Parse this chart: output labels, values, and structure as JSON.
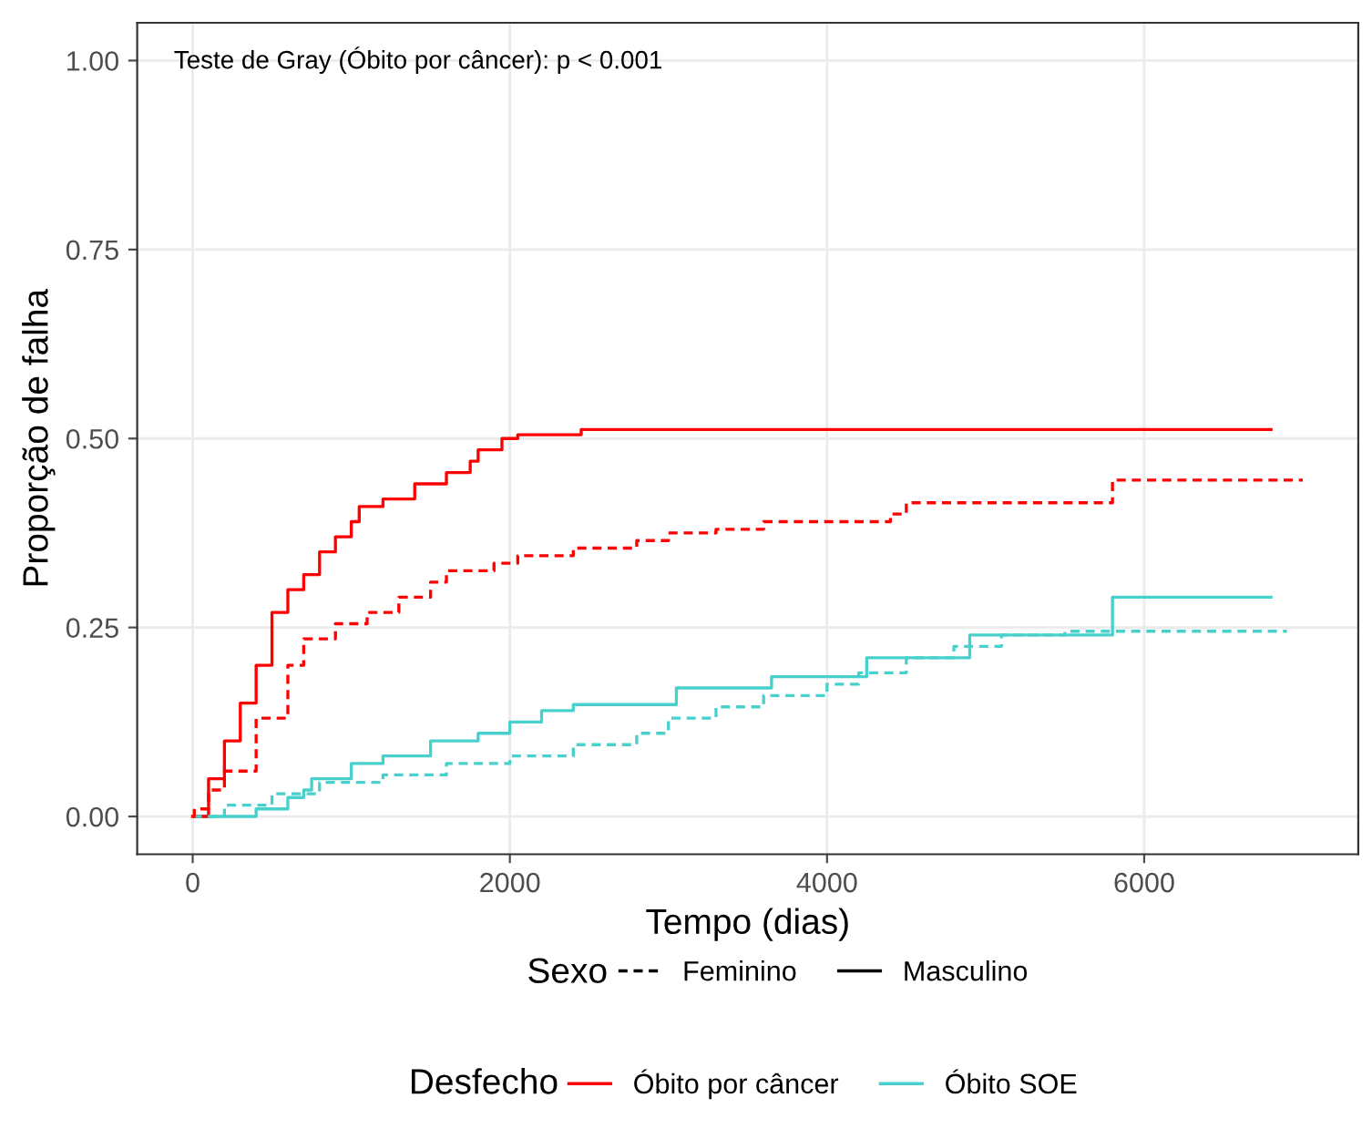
{
  "chart_data": {
    "type": "step",
    "xlabel": "Tempo (dias)",
    "ylabel": "Proporção de falha",
    "xlim": [
      -350,
      7350
    ],
    "ylim": [
      -0.05,
      1.05
    ],
    "xticks": [
      0,
      2000,
      4000,
      6000
    ],
    "yticks": [
      {
        "value": 0,
        "label": "0.00"
      },
      {
        "value": 0.25,
        "label": "0.25"
      },
      {
        "value": 0.5,
        "label": "0.50"
      },
      {
        "value": 0.75,
        "label": "0.75"
      },
      {
        "value": 1,
        "label": "1.00"
      }
    ],
    "grid": true,
    "legend": "bottom",
    "legend_title": "Desfecho",
    "annotations": [
      "Teste de Gray (Óbito por câncer): p < 0.001",
      "Sexo",
      "Feminino",
      "Masculino"
    ],
    "series": [
      {
        "name": "Óbito por câncer",
        "color": "#ff0000",
        "line_style": "dashed",
        "x": [
          0,
          10,
          100,
          200,
          400,
          600,
          700,
          900,
          1100,
          1300,
          1500,
          1600,
          1900,
          2050,
          2400,
          2800,
          3000,
          3300,
          3600,
          4400,
          4500,
          5800,
          7000
        ],
        "values": [
          0,
          0.01,
          0.035,
          0.06,
          0.13,
          0.2,
          0.235,
          0.255,
          0.27,
          0.29,
          0.31,
          0.325,
          0.335,
          0.345,
          0.355,
          0.365,
          0.375,
          0.38,
          0.39,
          0.4,
          0.415,
          0.445,
          0.445
        ]
      },
      {
        "color": "#ff0000",
        "line_style": "solid",
        "x": [
          0,
          100,
          200,
          300,
          400,
          500,
          600,
          700,
          800,
          900,
          1000,
          1050,
          1200,
          1400,
          1600,
          1750,
          1800,
          1950,
          2050,
          2450,
          6800
        ],
        "values": [
          0,
          0.05,
          0.1,
          0.15,
          0.2,
          0.27,
          0.3,
          0.32,
          0.35,
          0.37,
          0.39,
          0.41,
          0.42,
          0.44,
          0.455,
          0.47,
          0.485,
          0.5,
          0.505,
          0.512,
          0.512
        ]
      },
      {
        "name": "Óbito SOE",
        "color": "#48d1cc",
        "line_style": "dashed",
        "x": [
          0,
          200,
          500,
          800,
          1200,
          1600,
          2000,
          2400,
          2800,
          3000,
          3300,
          3600,
          4000,
          4200,
          4500,
          4800,
          5100,
          5500,
          6900
        ],
        "values": [
          0,
          0.015,
          0.03,
          0.045,
          0.055,
          0.07,
          0.08,
          0.095,
          0.11,
          0.13,
          0.145,
          0.16,
          0.175,
          0.19,
          0.21,
          0.225,
          0.24,
          0.245,
          0.245
        ]
      },
      {
        "color": "#48d1cc",
        "line_style": "solid",
        "x": [
          0,
          200,
          400,
          600,
          700,
          750,
          1000,
          1200,
          1500,
          1800,
          2000,
          2200,
          2400,
          3050,
          3650,
          4250,
          4900,
          5800,
          6800
        ],
        "values": [
          0,
          0,
          0.01,
          0.025,
          0.035,
          0.05,
          0.07,
          0.08,
          0.1,
          0.11,
          0.125,
          0.14,
          0.148,
          0.17,
          0.185,
          0.21,
          0.24,
          0.29,
          0.29
        ]
      }
    ]
  }
}
